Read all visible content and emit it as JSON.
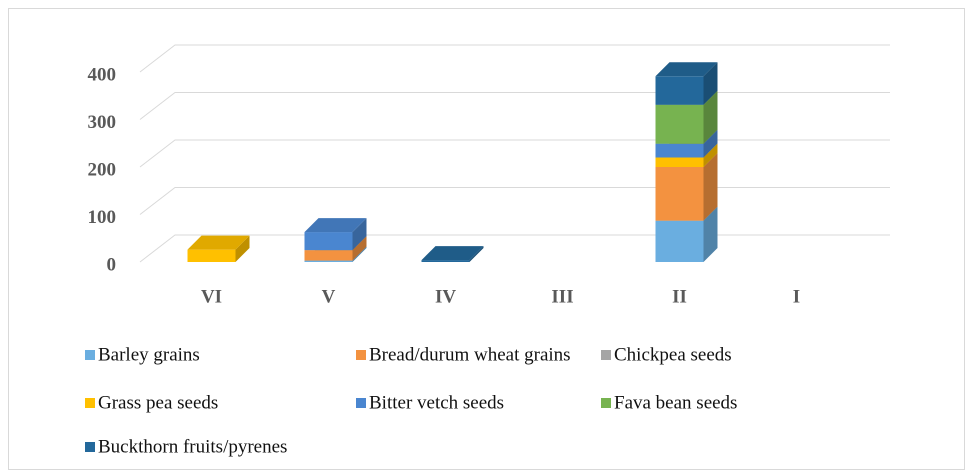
{
  "chart_data": {
    "type": "bar3d_stacked",
    "categories": [
      "VI",
      "V",
      "IV",
      "III",
      "II",
      "I"
    ],
    "series": [
      {
        "name": "Barley grains",
        "color": "#6aaee0",
        "values": [
          0,
          3,
          0,
          0,
          87,
          0
        ]
      },
      {
        "name": "Bread/durum wheat grains",
        "color": "#f39240",
        "values": [
          0,
          22,
          0,
          0,
          113,
          0
        ]
      },
      {
        "name": "Chickpea seeds",
        "color": "#a5a5a5",
        "values": [
          0,
          0,
          0,
          0,
          0,
          0
        ]
      },
      {
        "name": "Grass pea seeds",
        "color": "#ffc000",
        "values": [
          26,
          0,
          0,
          0,
          20,
          0
        ]
      },
      {
        "name": "Bitter vetch seeds",
        "color": "#4a86d0",
        "values": [
          0,
          38,
          0,
          0,
          29,
          0
        ]
      },
      {
        "name": "Fava bean seeds",
        "color": "#77b350",
        "values": [
          0,
          0,
          0,
          0,
          82,
          0
        ]
      },
      {
        "name": "Buckthorn fruits/pyrenes",
        "color": "#23689b",
        "values": [
          0,
          0,
          4,
          0,
          60,
          0
        ]
      }
    ],
    "ylim": [
      0,
      400
    ],
    "yticks": [
      0,
      100,
      200,
      300,
      400
    ],
    "grid": true
  }
}
